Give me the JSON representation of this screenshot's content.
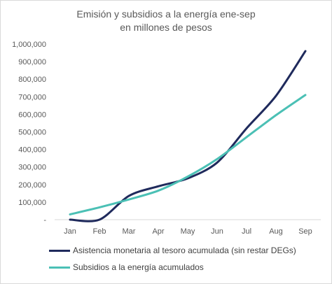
{
  "chart_data": {
    "type": "line",
    "title": "Emisión y subsidios a la energía ene-sep",
    "subtitle": "en millones de pesos",
    "xlabel": "",
    "ylabel": "",
    "categories": [
      "Jan",
      "Feb",
      "Mar",
      "Apr",
      "May",
      "Jun",
      "Jul",
      "Aug",
      "Sep"
    ],
    "ylim": [
      0,
      1000000
    ],
    "yticks": [
      0,
      100000,
      200000,
      300000,
      400000,
      500000,
      600000,
      700000,
      800000,
      900000,
      1000000
    ],
    "ytick_labels": [
      "-",
      "100,000",
      "200,000",
      "300,000",
      "400,000",
      "500,000",
      "600,000",
      "700,000",
      "800,000",
      "900,000",
      "1,000,000"
    ],
    "grid": false,
    "legend_position": "bottom",
    "series": [
      {
        "name": "Asistencia monetaria al tesoro acumulada (sin restar DEGs)",
        "color": "#1f2a5c",
        "values": [
          0,
          0,
          135000,
          190000,
          235000,
          325000,
          520000,
          705000,
          960000
        ]
      },
      {
        "name": "Subsidios a la energía acumulados",
        "color": "#4bc0b5",
        "values": [
          30000,
          70000,
          115000,
          165000,
          245000,
          345000,
          470000,
          595000,
          710000
        ]
      }
    ]
  }
}
